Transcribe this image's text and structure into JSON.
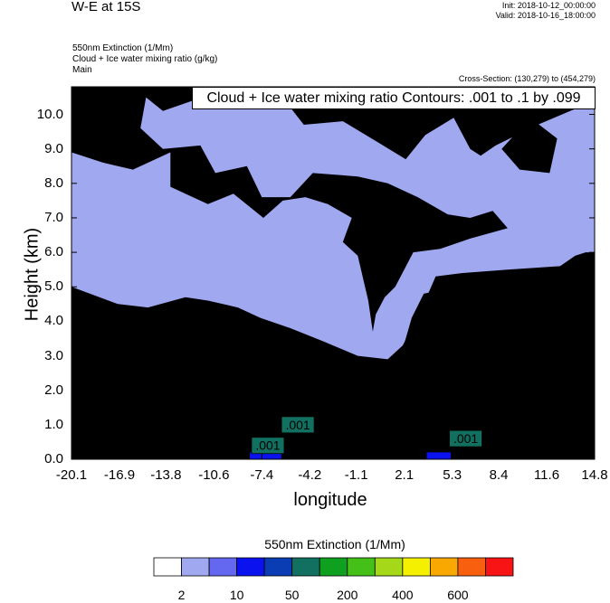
{
  "header": {
    "title": "W-E at 15S",
    "init": "Init: 2018-10-12_00:00:00",
    "valid": "Valid: 2018-10-16_18:00:00",
    "field_line_1": "550nm Extinction   (1/Mm)",
    "field_line_2": "Cloud + Ice water mixing ratio   (g/kg)",
    "field_line_3": "Main",
    "cross_section": "Cross-Section: (130,279) to (454,279)"
  },
  "chart_data": {
    "type": "heatmap",
    "title": "W-E at 15S",
    "xlabel": "longitude",
    "ylabel": "Height (km)",
    "xlim": [
      -20.1,
      14.8
    ],
    "ylim": [
      0.0,
      10.8
    ],
    "x_ticks": [
      "-20.1",
      "-16.9",
      "-13.8",
      "-10.6",
      "-7.4",
      "-4.2",
      "-1.1",
      "2.1",
      "5.3",
      "8.4",
      "11.6",
      "14.8"
    ],
    "y_ticks": [
      "0.0",
      "1.0",
      "2.0",
      "3.0",
      "4.0",
      "5.0",
      "6.0",
      "7.0",
      "8.0",
      "9.0",
      "10.0"
    ],
    "contour_legend": "Cloud + Ice water mixing ratio Contours: .001 to .1 by .099",
    "contour_labels": [
      {
        "text": ".001",
        "x": -5.0,
        "y": 1.0
      },
      {
        "text": ".001",
        "x": -7.0,
        "y": 0.4
      },
      {
        "text": ".001",
        "x": 6.2,
        "y": 0.6
      }
    ],
    "colorbar": {
      "title": "550nm Extinction  (1/Mm)",
      "colors": [
        "#ffffff",
        "#a0a8f0",
        "#6468f0",
        "#0a12f0",
        "#0a3cb4",
        "#127060",
        "#10a020",
        "#44c018",
        "#a4d818",
        "#f4f000",
        "#f8a800",
        "#f86010",
        "#f81414"
      ],
      "labels": [
        "2",
        "10",
        "50",
        "200",
        "400",
        "600"
      ]
    }
  }
}
